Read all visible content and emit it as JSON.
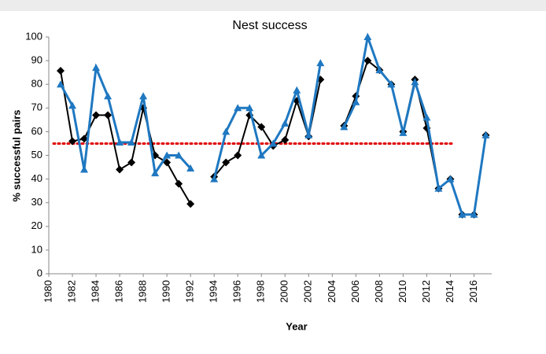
{
  "chart_data": {
    "type": "line",
    "title": "Nest success",
    "xlabel": "Year",
    "ylabel": "% successful pairs",
    "x": [
      1981,
      1982,
      1983,
      1984,
      1985,
      1986,
      1987,
      1988,
      1989,
      1990,
      1991,
      1992,
      1993,
      1994,
      1995,
      1996,
      1997,
      1998,
      1999,
      2000,
      2001,
      2002,
      2003,
      2004,
      2005,
      2006,
      2007,
      2008,
      2009,
      2010,
      2011,
      2012,
      2013,
      2014,
      2015,
      2016,
      2017
    ],
    "series": [
      {
        "color": "#000000",
        "marker": "diamond",
        "values": [
          85.7,
          56,
          57,
          67,
          67,
          44,
          47,
          70,
          50,
          47,
          38,
          29.5,
          null,
          41,
          47,
          50,
          67,
          62,
          54,
          56.5,
          73,
          58,
          82,
          null,
          62.5,
          75,
          90,
          86,
          80,
          60,
          82,
          61.5,
          36,
          40,
          25,
          25,
          58.5
        ]
      },
      {
        "color": "#1f78c1",
        "marker": "triangle",
        "values": [
          80,
          71,
          44,
          87,
          75,
          55.5,
          55.5,
          75,
          42.5,
          50,
          50,
          44.5,
          null,
          40,
          60,
          70,
          70,
          50,
          55,
          63.5,
          77.5,
          58.5,
          89,
          null,
          62,
          72.5,
          100,
          86,
          80,
          59.5,
          81,
          66,
          36,
          40,
          25,
          25,
          58.5
        ]
      }
    ],
    "reference_line": {
      "value": 55,
      "color": "#e00000"
    },
    "xlim": [
      1980,
      2017.5
    ],
    "xticks": [
      1980,
      1982,
      1984,
      1986,
      1988,
      1990,
      1992,
      1994,
      1996,
      1998,
      2000,
      2002,
      2004,
      2006,
      2008,
      2010,
      2012,
      2014,
      2016
    ],
    "ylim": [
      0,
      100
    ],
    "yticks": [
      0,
      10,
      20,
      30,
      40,
      50,
      60,
      70,
      80,
      90,
      100
    ]
  }
}
